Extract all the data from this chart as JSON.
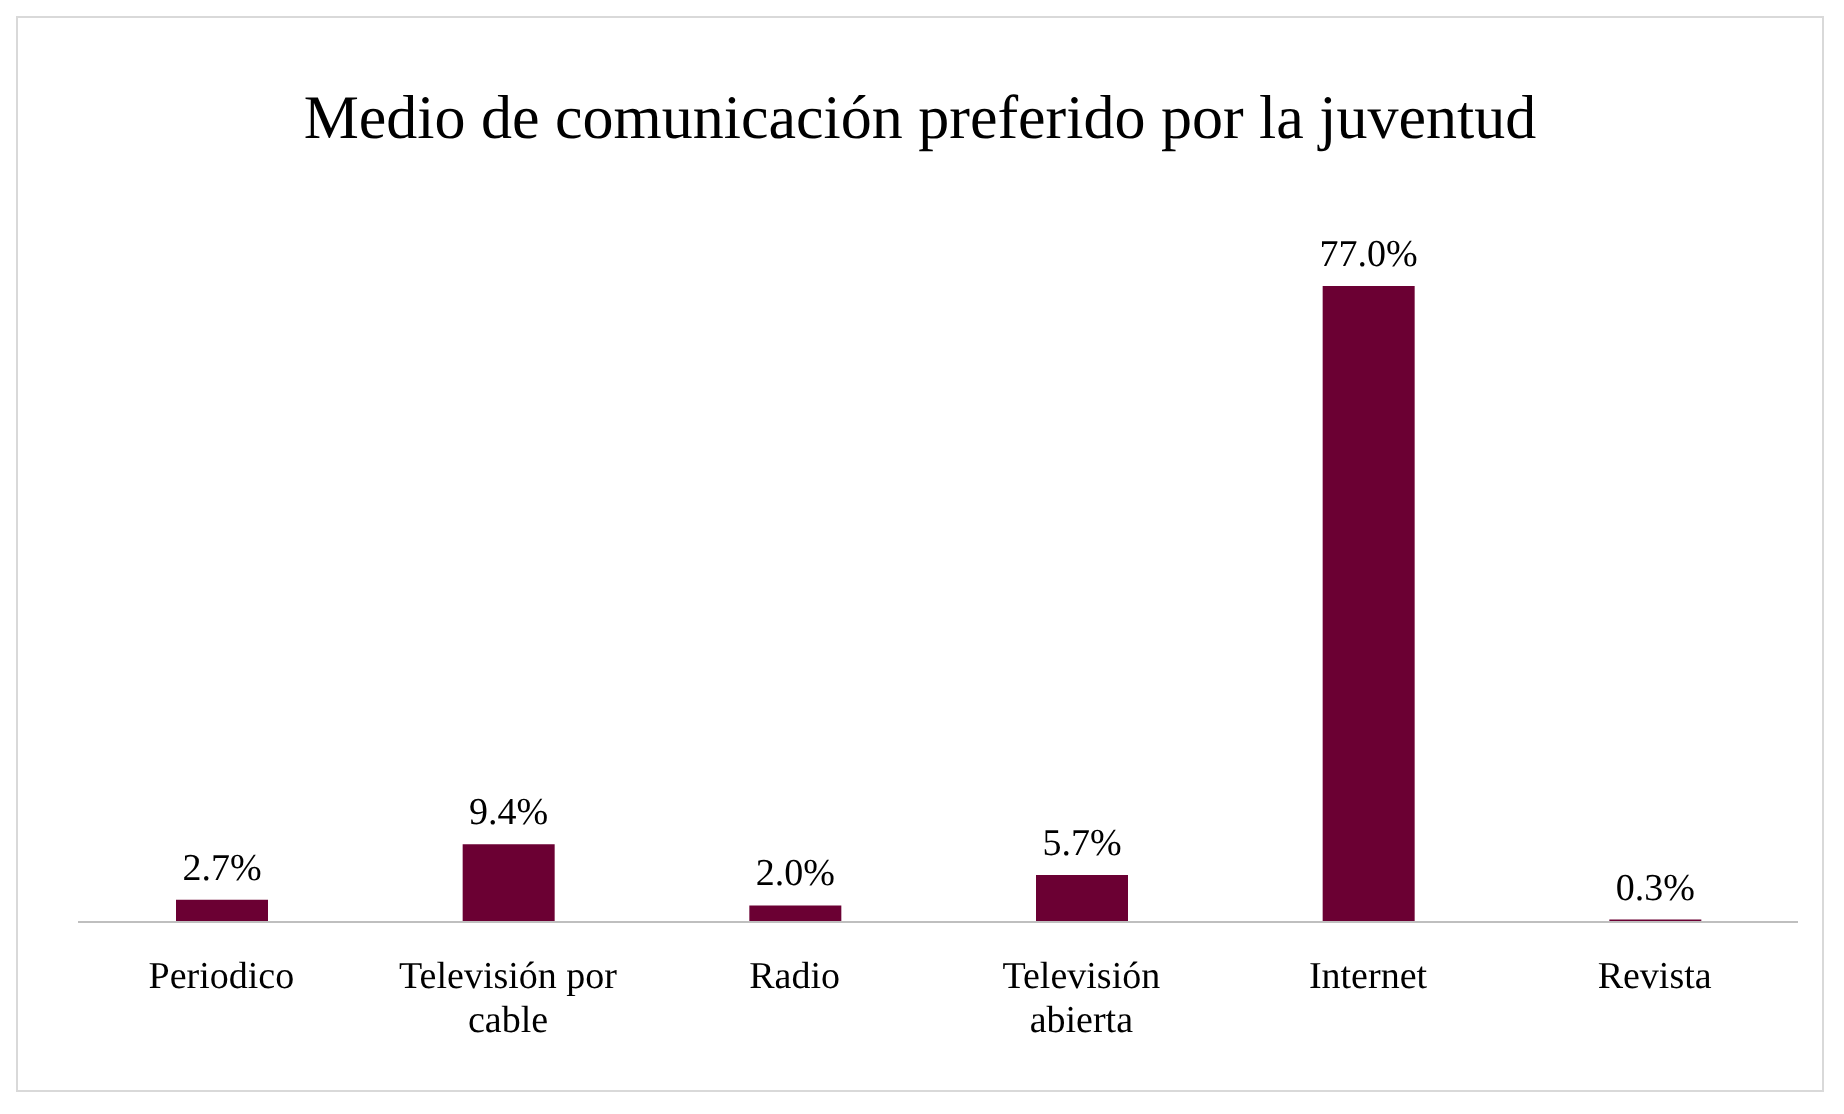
{
  "chart_data": {
    "type": "bar",
    "title": "Medio de comunicación preferido por la juventud",
    "categories": [
      "Periodico",
      "Televisión por cable",
      "Radio",
      "Televisión abierta",
      "Internet",
      "Revista"
    ],
    "values": [
      2.7,
      9.4,
      2.0,
      5.7,
      77.0,
      0.3
    ],
    "value_labels": [
      "2.7%",
      "9.4%",
      "2.0%",
      "5.7%",
      "77.0%",
      "0.3%"
    ],
    "color": "#6b0033"
  }
}
